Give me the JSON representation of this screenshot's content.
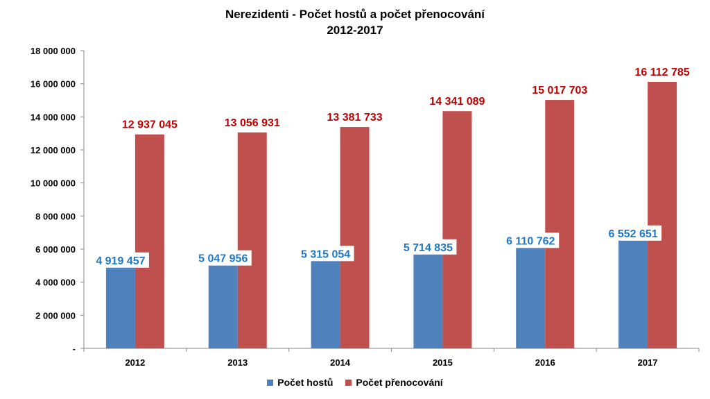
{
  "chart_data": {
    "type": "bar",
    "title": "Nerezidenti - Počet hostů a počet přenocování",
    "subtitle": "2012-2017",
    "categories": [
      "2012",
      "2013",
      "2014",
      "2015",
      "2016",
      "2017"
    ],
    "series": [
      {
        "name": "Počet hostů",
        "color": "#4F81BD",
        "label_color": "#1F78C8",
        "values": [
          4919457,
          5047956,
          5315054,
          5714835,
          6110762,
          6552651
        ],
        "labels": [
          "4 919 457",
          "5 047 956",
          "5 315 054",
          "5 714 835",
          "6 110 762",
          "6 552 651"
        ]
      },
      {
        "name": "Počet přenocování",
        "color": "#C0504D",
        "label_color": "#C00000",
        "values": [
          12937045,
          13056931,
          13381733,
          14341089,
          15017703,
          16112785
        ],
        "labels": [
          "12 937 045",
          "13 056 931",
          "13 381 733",
          "14 341 089",
          "15 017 703",
          "16 112 785"
        ]
      }
    ],
    "ylim": [
      0,
      18000000
    ],
    "yticks": [
      0,
      2000000,
      4000000,
      6000000,
      8000000,
      10000000,
      12000000,
      14000000,
      16000000,
      18000000
    ],
    "ytick_labels": [
      "-",
      "2 000 000",
      "4 000 000",
      "6 000 000",
      "8 000 000",
      "10 000 000",
      "12 000 000",
      "14 000 000",
      "16 000 000",
      "18 000 000"
    ],
    "grid": false,
    "legend_position": "bottom"
  }
}
